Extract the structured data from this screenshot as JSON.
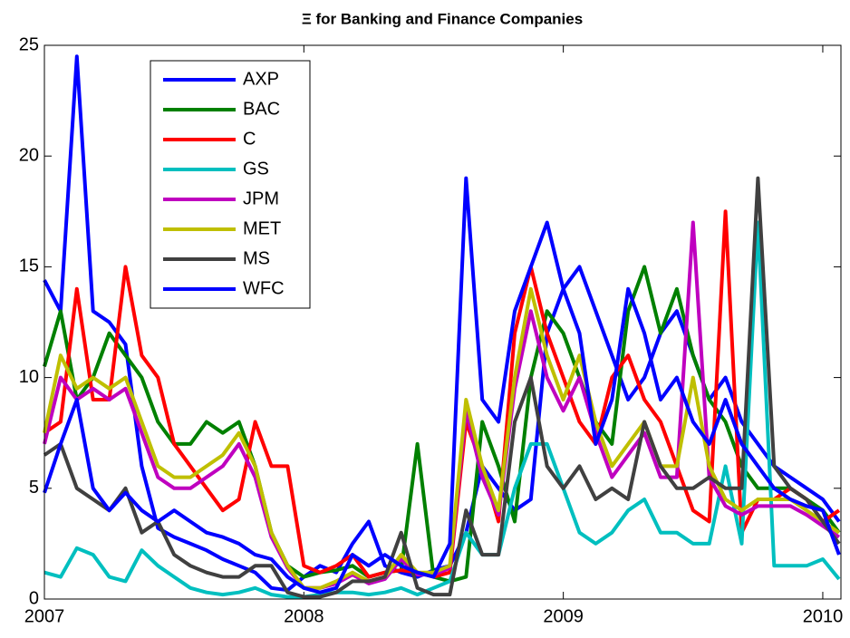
{
  "chart_data": {
    "type": "line",
    "title": "Ξ for Banking and Finance Companies",
    "x": [
      2007,
      2007.0625,
      2007.125,
      2007.1875,
      2007.25,
      2007.3125,
      2007.375,
      2007.4375,
      2007.5,
      2007.5625,
      2007.625,
      2007.6875,
      2007.75,
      2007.8125,
      2007.875,
      2007.9375,
      2008,
      2008.0625,
      2008.125,
      2008.1875,
      2008.25,
      2008.3125,
      2008.375,
      2008.4375,
      2008.5,
      2008.5625,
      2008.625,
      2008.6875,
      2008.75,
      2008.8125,
      2008.875,
      2008.9375,
      2009,
      2009.0625,
      2009.125,
      2009.1875,
      2009.25,
      2009.3125,
      2009.375,
      2009.4375,
      2009.5,
      2009.5625,
      2009.625,
      2009.6875,
      2009.75,
      2009.8125,
      2009.875,
      2009.9375,
      2010,
      2010.0625
    ],
    "series": [
      {
        "name": "AXP",
        "color": "#0000ff",
        "values": [
          14.4,
          13,
          24.5,
          13,
          12.5,
          11.5,
          6,
          3.2,
          2.8,
          2.5,
          2.2,
          1.8,
          1.5,
          1.2,
          0.5,
          0.4,
          1.0,
          1.5,
          1.2,
          2.5,
          3.5,
          1.5,
          1.2,
          1.0,
          1.3,
          1.5,
          3,
          6,
          5,
          4,
          4.5,
          12,
          14,
          15,
          13,
          11,
          9,
          10,
          12,
          13,
          11,
          9,
          10,
          8,
          7,
          6,
          5.5,
          5,
          4.5,
          3.5
        ]
      },
      {
        "name": "BAC",
        "color": "#008000",
        "values": [
          10.5,
          13,
          9,
          10,
          12,
          11,
          10,
          8,
          7,
          7,
          8,
          7.5,
          8,
          6,
          3,
          1.5,
          1,
          1.2,
          1.3,
          1.5,
          1.0,
          1.2,
          1.3,
          7,
          1.0,
          0.8,
          1,
          8,
          6,
          3.5,
          10,
          13,
          12,
          10,
          8,
          7,
          13,
          15,
          12,
          14,
          11,
          9,
          8,
          6,
          5,
          5,
          5,
          4.5,
          4,
          3
        ]
      },
      {
        "name": "C",
        "color": "#ff0000",
        "values": [
          7.5,
          8,
          14,
          9,
          9,
          15,
          11,
          10,
          7,
          6,
          5,
          4,
          4.5,
          8,
          6,
          6,
          1.5,
          1.2,
          1.5,
          2,
          1.0,
          1.2,
          1.3,
          1.2,
          1.0,
          1.2,
          8,
          6,
          3.5,
          12,
          15,
          12,
          10,
          8,
          7,
          10,
          11,
          9,
          8,
          6,
          4,
          3.5,
          17.5,
          3,
          4.5,
          4.5,
          5,
          4.5,
          3.5,
          4
        ]
      },
      {
        "name": "GS",
        "color": "#00bfbf",
        "values": [
          1.2,
          1.0,
          2.3,
          2.0,
          1.0,
          0.8,
          2.2,
          1.5,
          1.0,
          0.5,
          0.3,
          0.2,
          0.3,
          0.5,
          0.2,
          0.1,
          0.1,
          0.2,
          0.3,
          0.3,
          0.2,
          0.3,
          0.5,
          0.2,
          0.5,
          0.8,
          3,
          2,
          2,
          5,
          7,
          7,
          5,
          3,
          2.5,
          3,
          4,
          4.5,
          3,
          3,
          2.5,
          2.5,
          6,
          2.5,
          17,
          1.5,
          1.5,
          1.5,
          1.8,
          0.9
        ]
      },
      {
        "name": "JPM",
        "color": "#bf00bf",
        "values": [
          7,
          10,
          9,
          9.5,
          9,
          9.5,
          7.5,
          5.5,
          5,
          5,
          5.5,
          6,
          7,
          5.5,
          2.8,
          1.4,
          0.5,
          0.5,
          0.7,
          1.1,
          0.7,
          0.9,
          1.8,
          1.1,
          1.1,
          1.4,
          8.5,
          5.5,
          3.8,
          9.5,
          13,
          10,
          8.5,
          10,
          7.5,
          5.5,
          6.5,
          7.5,
          5.5,
          5.5,
          17,
          5.5,
          4.2,
          3.8,
          4.2,
          4.2,
          4.2,
          3.8,
          3.3,
          2.8
        ]
      },
      {
        "name": "MET",
        "color": "#bfbf00",
        "values": [
          7.5,
          11,
          9.5,
          10,
          9.5,
          10,
          8,
          6,
          5.5,
          5.5,
          6,
          6.5,
          7.5,
          6,
          3,
          1.5,
          0.5,
          0.5,
          0.8,
          1.2,
          0.8,
          1,
          2,
          1.2,
          1.2,
          1.5,
          9,
          6,
          4,
          10,
          14,
          11,
          9,
          11,
          8,
          6,
          7,
          8,
          6,
          6,
          10,
          6,
          4.5,
          4,
          4.5,
          4.5,
          4.5,
          4,
          3.5,
          3
        ]
      },
      {
        "name": "MS",
        "color": "#404040",
        "values": [
          6.5,
          7,
          5,
          4.5,
          4,
          5,
          3,
          3.5,
          2,
          1.5,
          1.2,
          1.0,
          1.0,
          1.5,
          1.5,
          0.3,
          0.1,
          0.1,
          0.3,
          0.8,
          0.8,
          1,
          3,
          0.5,
          0.2,
          0.2,
          4,
          2,
          2,
          8,
          10,
          6,
          5,
          6,
          4.5,
          5,
          4.5,
          8,
          6,
          5,
          5,
          5.5,
          5,
          5,
          19,
          6,
          5,
          4.5,
          3.5,
          2.5
        ]
      },
      {
        "name": "WFC",
        "color": "#0000ff",
        "values": [
          4.8,
          7,
          9,
          5,
          4,
          4.8,
          4,
          3.5,
          4,
          3.5,
          3,
          2.8,
          2.5,
          2,
          1.8,
          1.0,
          0.5,
          0.3,
          0.5,
          2.0,
          1.5,
          2.0,
          1.5,
          1.2,
          1.0,
          2.5,
          19,
          9,
          8,
          13,
          15,
          17,
          14,
          12,
          7,
          9,
          14,
          12,
          9,
          10,
          8,
          7,
          9,
          7,
          6,
          5,
          4.5,
          4.2,
          4,
          2.0
        ]
      }
    ],
    "xlim": [
      2007,
      2010.07
    ],
    "xticks": [
      2007,
      2008,
      2009,
      2010
    ],
    "ylim": [
      0,
      25
    ],
    "yticks": [
      0,
      5,
      10,
      15,
      20,
      25
    ],
    "legend": "upper left"
  }
}
